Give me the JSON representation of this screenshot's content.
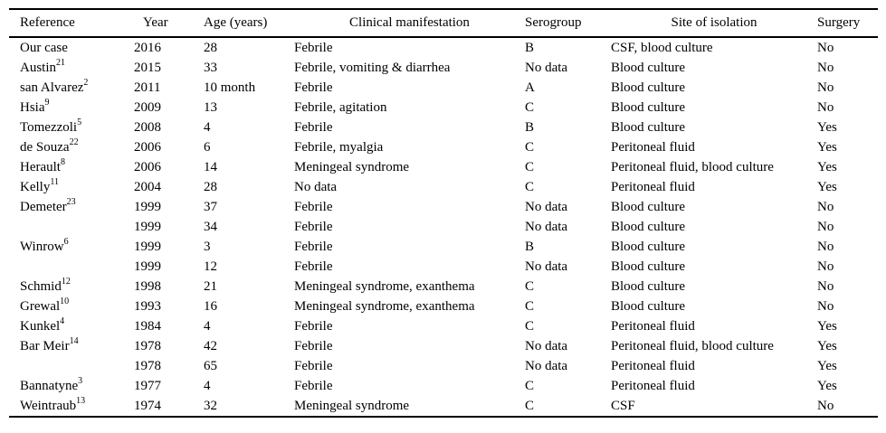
{
  "page": {
    "background_color": "#ffffff",
    "text_color": "#000000",
    "rule_color": "#000000"
  },
  "table": {
    "columns": [
      "Reference",
      "Year",
      "Age (years)",
      "Clinical manifestation",
      "Serogroup",
      "Site of isolation",
      "Surgery"
    ],
    "rows": [
      {
        "name": "Our case",
        "sup": "",
        "year": "2016",
        "age": "28",
        "clinical": "Febrile",
        "serogroup": "B",
        "site": "CSF, blood culture",
        "surgery": "No"
      },
      {
        "name": "Austin",
        "sup": "21",
        "year": "2015",
        "age": "33",
        "clinical": "Febrile, vomiting & diarrhea",
        "serogroup": "No data",
        "site": "Blood culture",
        "surgery": "No"
      },
      {
        "name": "san Alvarez",
        "sup": "2",
        "year": "2011",
        "age": "10 month",
        "clinical": "Febrile",
        "serogroup": "A",
        "site": "Blood culture",
        "surgery": "No"
      },
      {
        "name": "Hsia",
        "sup": "9",
        "year": "2009",
        "age": "13",
        "clinical": "Febrile, agitation",
        "serogroup": "C",
        "site": "Blood culture",
        "surgery": "No"
      },
      {
        "name": "Tomezzoli",
        "sup": "5",
        "year": "2008",
        "age": "4",
        "clinical": "Febrile",
        "serogroup": "B",
        "site": "Blood culture",
        "surgery": "Yes"
      },
      {
        "name": "de Souza",
        "sup": "22",
        "year": "2006",
        "age": "6",
        "clinical": "Febrile, myalgia",
        "serogroup": "C",
        "site": "Peritoneal fluid",
        "surgery": "Yes"
      },
      {
        "name": "Herault",
        "sup": "8",
        "year": "2006",
        "age": "14",
        "clinical": "Meningeal syndrome",
        "serogroup": "C",
        "site": "Peritoneal fluid, blood culture",
        "surgery": "Yes"
      },
      {
        "name": "Kelly",
        "sup": "11",
        "year": "2004",
        "age": "28",
        "clinical": "No data",
        "serogroup": "C",
        "site": "Peritoneal fluid",
        "surgery": "Yes"
      },
      {
        "name": "Demeter",
        "sup": "23",
        "year": "1999",
        "age": "37",
        "clinical": "Febrile",
        "serogroup": "No data",
        "site": "Blood culture",
        "surgery": "No"
      },
      {
        "name": "",
        "sup": "",
        "year": "1999",
        "age": "34",
        "clinical": "Febrile",
        "serogroup": "No data",
        "site": "Blood culture",
        "surgery": "No"
      },
      {
        "name": "Winrow",
        "sup": "6",
        "year": "1999",
        "age": "3",
        "clinical": "Febrile",
        "serogroup": "B",
        "site": "Blood culture",
        "surgery": "No"
      },
      {
        "name": "",
        "sup": "",
        "year": "1999",
        "age": "12",
        "clinical": "Febrile",
        "serogroup": "No data",
        "site": "Blood culture",
        "surgery": "No"
      },
      {
        "name": "Schmid",
        "sup": "12",
        "year": "1998",
        "age": "21",
        "clinical": "Meningeal syndrome, exanthema",
        "serogroup": "C",
        "site": "Blood culture",
        "surgery": "No"
      },
      {
        "name": "Grewal",
        "sup": "10",
        "year": "1993",
        "age": "16",
        "clinical": "Meningeal syndrome, exanthema",
        "serogroup": "C",
        "site": "Blood culture",
        "surgery": "No"
      },
      {
        "name": "Kunkel",
        "sup": "4",
        "year": "1984",
        "age": "4",
        "clinical": "Febrile",
        "serogroup": "C",
        "site": "Peritoneal fluid",
        "surgery": "Yes"
      },
      {
        "name": "Bar Meir",
        "sup": "14",
        "year": "1978",
        "age": "42",
        "clinical": "Febrile",
        "serogroup": "No data",
        "site": "Peritoneal fluid, blood culture",
        "surgery": "Yes"
      },
      {
        "name": "",
        "sup": "",
        "year": "1978",
        "age": "65",
        "clinical": "Febrile",
        "serogroup": "No data",
        "site": "Peritoneal fluid",
        "surgery": "Yes"
      },
      {
        "name": "Bannatyne",
        "sup": "3",
        "year": "1977",
        "age": "4",
        "clinical": "Febrile",
        "serogroup": "C",
        "site": "Peritoneal fluid",
        "surgery": "Yes"
      },
      {
        "name": "Weintraub",
        "sup": "13",
        "year": "1974",
        "age": "32",
        "clinical": "Meningeal syndrome",
        "serogroup": "C",
        "site": "CSF",
        "surgery": "No"
      }
    ]
  }
}
